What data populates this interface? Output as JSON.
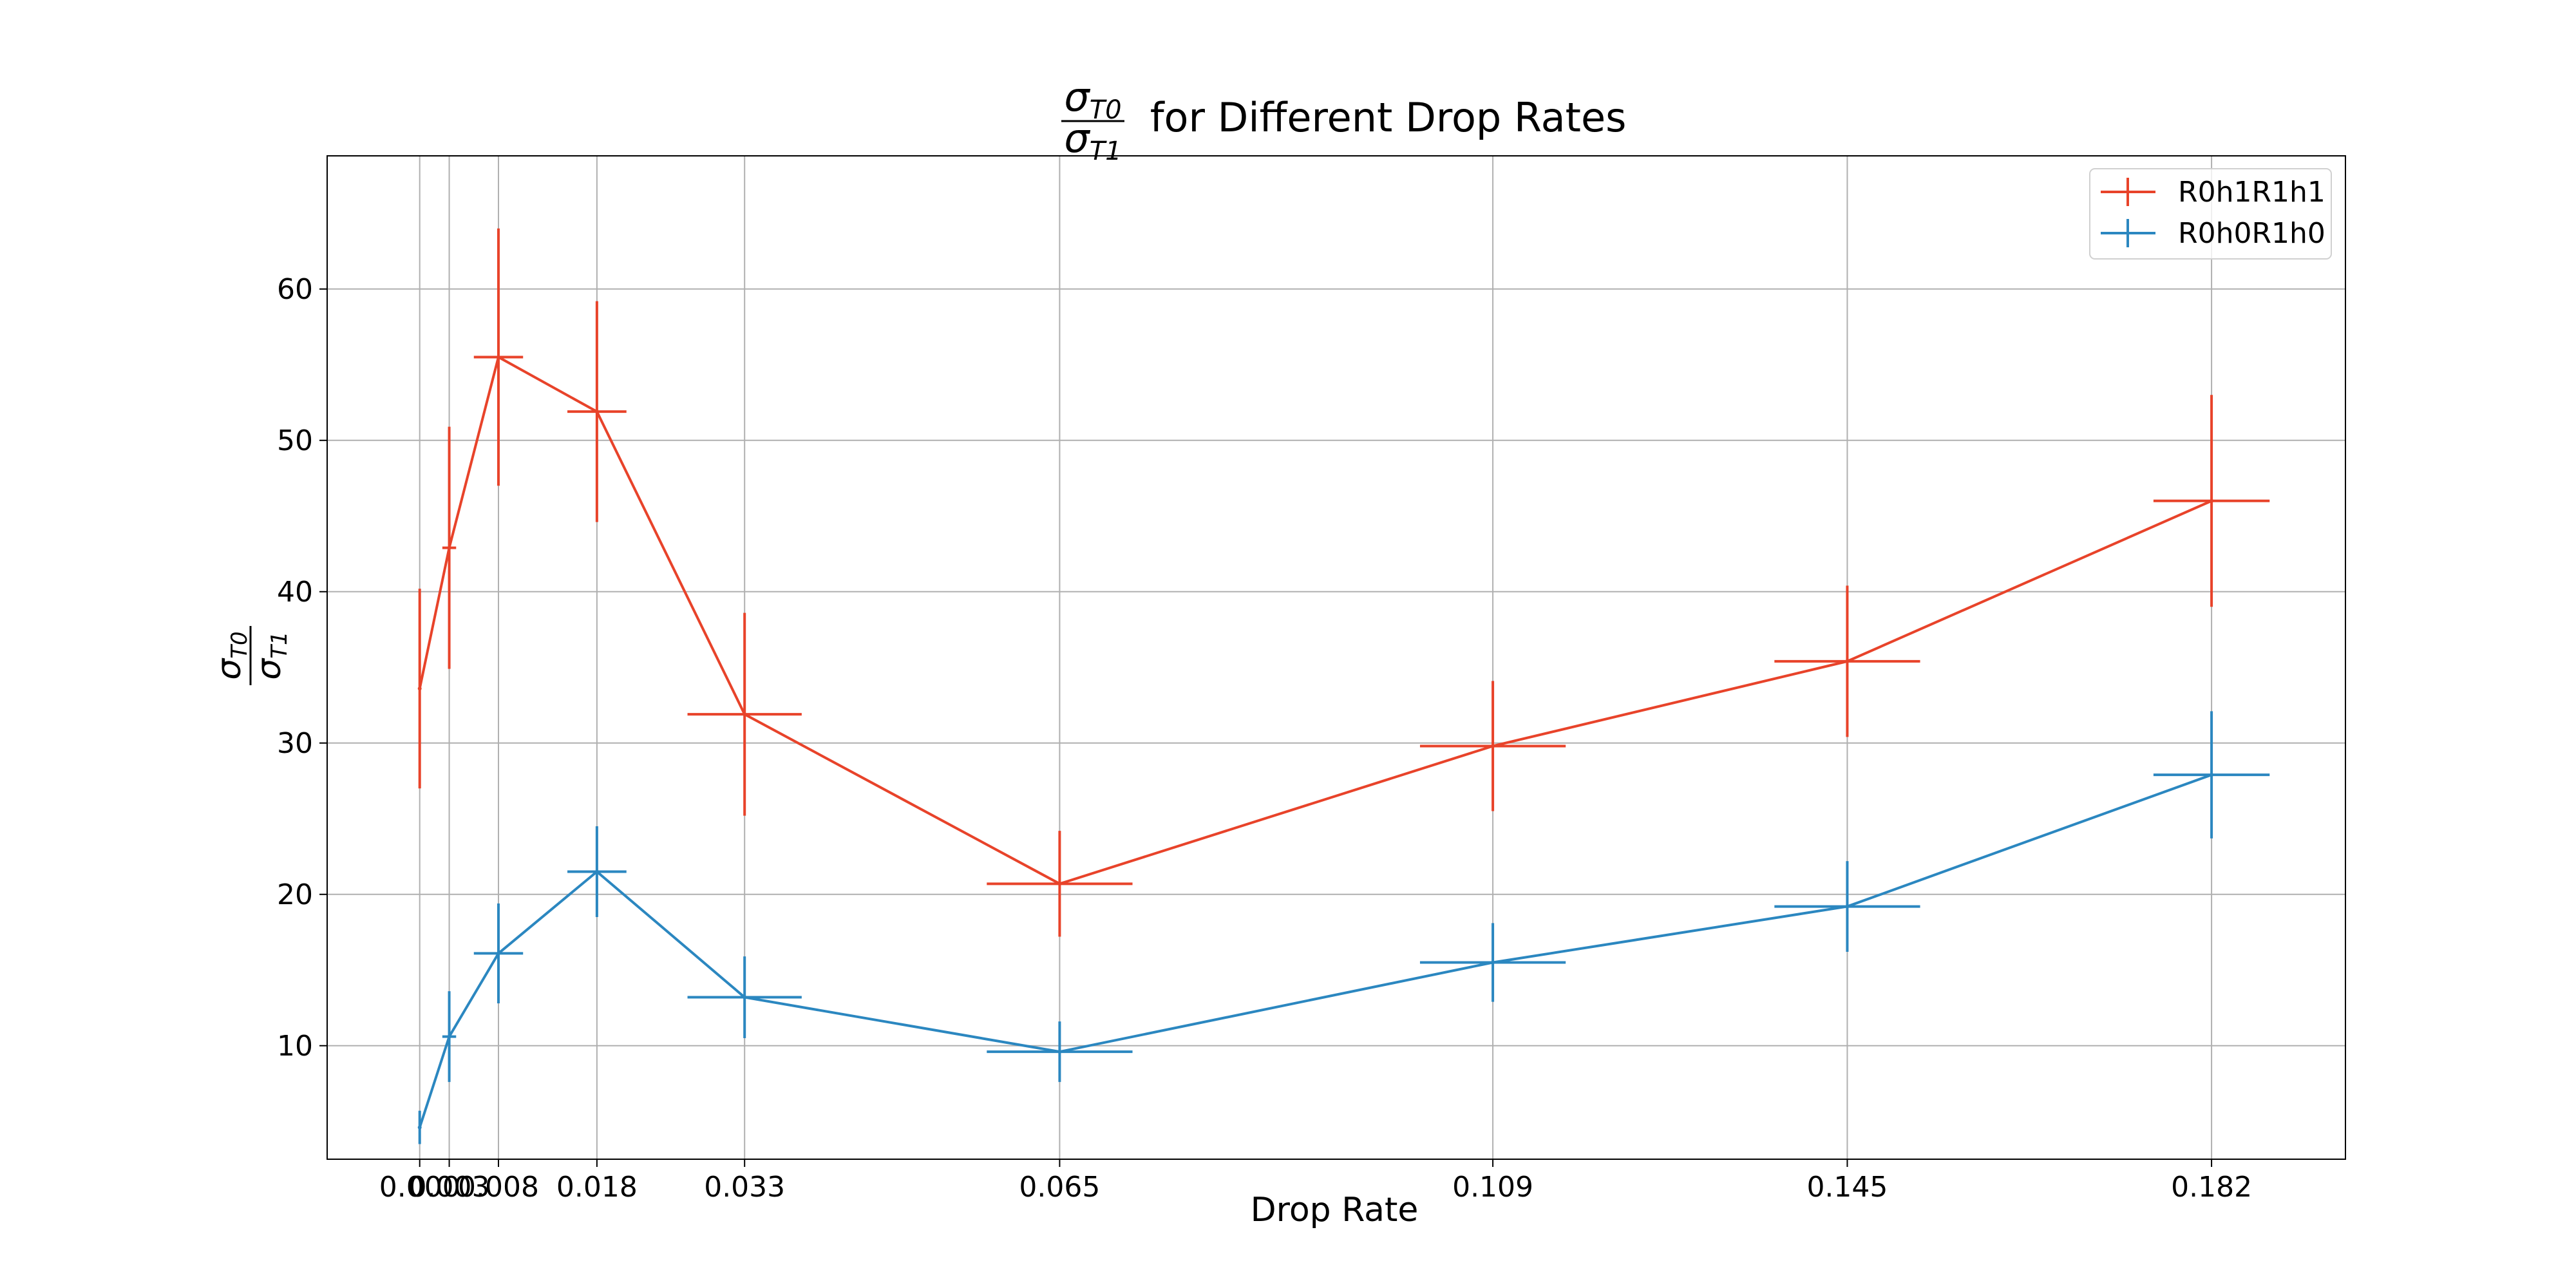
{
  "chart_data": {
    "type": "line",
    "title_prefix": "σ",
    "title_sub_num": "T0",
    "title_sub_den": "T1",
    "title_suffix": " for Different Drop Rates",
    "xlabel": "Drop Rate",
    "ylabel_sym": "σ",
    "ylabel_sub_num": "T0",
    "ylabel_sub_den": "T1",
    "x": [
      0.0,
      0.003,
      0.008,
      0.018,
      0.033,
      0.065,
      0.109,
      0.145,
      0.182
    ],
    "x_tick_labels": [
      "0.000",
      "0.003",
      "0.008",
      "0.018",
      "0.033",
      "0.065",
      "0.109",
      "0.145",
      "0.182"
    ],
    "xlim": [
      -0.0094,
      0.1956
    ],
    "ylim": [
      2.5,
      68.8
    ],
    "y_ticks": [
      10,
      20,
      30,
      40,
      50,
      60
    ],
    "y_tick_labels": [
      "10",
      "20",
      "30",
      "40",
      "50",
      "60"
    ],
    "grid": true,
    "legend_position": "top-right",
    "series": [
      {
        "name": "R0h1R1h1",
        "color": "#e8432a",
        "values": [
          33.6,
          42.9,
          55.5,
          51.9,
          31.9,
          20.7,
          29.8,
          35.4,
          46.0
        ],
        "y_err": [
          6.6,
          8.0,
          8.5,
          7.3,
          6.7,
          3.5,
          4.3,
          5.0,
          7.0
        ],
        "x_err": [
          0.0,
          0.0007,
          0.0025,
          0.003,
          0.0058,
          0.0074,
          0.0074,
          0.0074,
          0.0059
        ]
      },
      {
        "name": "R0h0R1h0",
        "color": "#2b87c0",
        "values": [
          4.6,
          10.6,
          16.1,
          21.5,
          13.2,
          9.6,
          15.5,
          19.2,
          27.9
        ],
        "y_err": [
          1.1,
          3.0,
          3.3,
          3.0,
          2.7,
          2.0,
          2.6,
          3.0,
          4.2
        ],
        "x_err": [
          0.0,
          0.0007,
          0.0025,
          0.003,
          0.0058,
          0.0074,
          0.0074,
          0.0074,
          0.0059
        ]
      }
    ]
  }
}
